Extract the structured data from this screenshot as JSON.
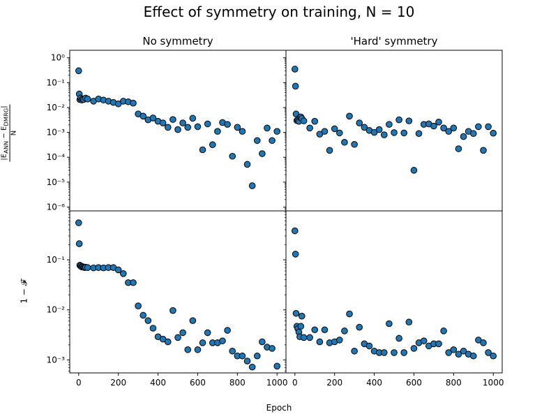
{
  "figure_title": "Effect of symmetry on training, N = 10",
  "xlabel": "Epoch",
  "colors": {
    "marker_fill": "#1f77b4",
    "marker_edge": "#000000",
    "frame": "#000000"
  },
  "x_ticks": [
    0,
    200,
    400,
    600,
    800,
    1000
  ],
  "column_titles": [
    "No symmetry",
    "'Hard' symmetry"
  ],
  "row_ylabels": [
    {
      "num": "|E",
      "num_sub1": "ANN",
      "num_mid": " − E",
      "num_sub2": "DMRG",
      "num_end": "|",
      "den": "N"
    },
    {
      "text": "1 − 𝓕"
    }
  ],
  "chart_data": [
    {
      "type": "scatter",
      "title": "No symmetry",
      "row": 0,
      "col": 0,
      "xlim": [
        -45,
        1045
      ],
      "ylim": [
        7e-07,
        2
      ],
      "yscale": "log",
      "ytick_values": [
        1,
        0.1,
        0.01,
        0.001,
        0.0001,
        1e-05,
        1e-06
      ],
      "ytick_labels": [
        "10^0",
        "10^-1",
        "10^-2",
        "10^-3",
        "10^-4",
        "10^-5",
        "10^-6"
      ],
      "points": [
        [
          0,
          0.3
        ],
        [
          3,
          0.035
        ],
        [
          6,
          0.021
        ],
        [
          10,
          0.024
        ],
        [
          15,
          0.02
        ],
        [
          20,
          0.022
        ],
        [
          25,
          0.021
        ],
        [
          35,
          0.024
        ],
        [
          45,
          0.022
        ],
        [
          75,
          0.018
        ],
        [
          100,
          0.022
        ],
        [
          125,
          0.02
        ],
        [
          150,
          0.018
        ],
        [
          175,
          0.016
        ],
        [
          200,
          0.014
        ],
        [
          225,
          0.018
        ],
        [
          250,
          0.017
        ],
        [
          275,
          0.015
        ],
        [
          300,
          0.0055
        ],
        [
          325,
          0.0045
        ],
        [
          350,
          0.0032
        ],
        [
          375,
          0.0038
        ],
        [
          400,
          0.0028
        ],
        [
          425,
          0.0024
        ],
        [
          450,
          0.0016
        ],
        [
          475,
          0.0033
        ],
        [
          500,
          0.0013
        ],
        [
          525,
          0.0024
        ],
        [
          550,
          0.0016
        ],
        [
          575,
          0.0037
        ],
        [
          600,
          0.0017
        ],
        [
          625,
          0.0002
        ],
        [
          650,
          0.0022
        ],
        [
          675,
          0.00032
        ],
        [
          700,
          0.0011
        ],
        [
          725,
          0.0025
        ],
        [
          750,
          0.0021
        ],
        [
          775,
          0.00011
        ],
        [
          800,
          0.0016
        ],
        [
          825,
          0.0011
        ],
        [
          850,
          5.2e-05
        ],
        [
          875,
          7.2e-06
        ],
        [
          900,
          0.00047
        ],
        [
          925,
          0.00014
        ],
        [
          950,
          0.0015
        ],
        [
          975,
          0.00047
        ],
        [
          1000,
          0.0011
        ]
      ]
    },
    {
      "type": "scatter",
      "title": "'Hard' symmetry",
      "row": 0,
      "col": 1,
      "xlim": [
        -45,
        1045
      ],
      "ylim": [
        7e-07,
        2
      ],
      "yscale": "log",
      "ytick_values": [
        1,
        0.1,
        0.01,
        0.001,
        0.0001,
        1e-05,
        1e-06
      ],
      "points": [
        [
          0,
          0.35
        ],
        [
          3,
          0.072
        ],
        [
          6,
          0.0055
        ],
        [
          10,
          0.003
        ],
        [
          15,
          0.0032
        ],
        [
          20,
          0.0028
        ],
        [
          25,
          0.004
        ],
        [
          30,
          0.0042
        ],
        [
          35,
          0.0036
        ],
        [
          45,
          0.0029
        ],
        [
          75,
          0.0015
        ],
        [
          100,
          0.0028
        ],
        [
          125,
          0.00085
        ],
        [
          150,
          0.0011
        ],
        [
          175,
          0.00019
        ],
        [
          200,
          0.0014
        ],
        [
          225,
          0.00095
        ],
        [
          250,
          0.0004
        ],
        [
          275,
          0.0045
        ],
        [
          300,
          0.00033
        ],
        [
          325,
          0.0024
        ],
        [
          350,
          0.0016
        ],
        [
          375,
          0.0012
        ],
        [
          400,
          0.001
        ],
        [
          425,
          0.0013
        ],
        [
          450,
          0.0008
        ],
        [
          475,
          0.0021
        ],
        [
          500,
          0.00098
        ],
        [
          525,
          0.0032
        ],
        [
          550,
          0.00095
        ],
        [
          575,
          0.0029
        ],
        [
          600,
          3e-05
        ],
        [
          625,
          0.0009
        ],
        [
          650,
          0.0021
        ],
        [
          675,
          0.0022
        ],
        [
          700,
          0.0018
        ],
        [
          725,
          0.0026
        ],
        [
          750,
          0.0015
        ],
        [
          775,
          0.0011
        ],
        [
          800,
          0.0015
        ],
        [
          825,
          0.00022
        ],
        [
          850,
          0.00068
        ],
        [
          875,
          0.0011
        ],
        [
          900,
          0.0009
        ],
        [
          925,
          0.0017
        ],
        [
          950,
          0.00019
        ],
        [
          975,
          0.0017
        ],
        [
          1000,
          0.00093
        ]
      ]
    },
    {
      "type": "scatter",
      "row": 1,
      "col": 0,
      "xlim": [
        -45,
        1045
      ],
      "ylim": [
        0.00055,
        0.95
      ],
      "yscale": "log",
      "ytick_values": [
        0.1,
        0.01,
        0.001
      ],
      "ytick_labels": [
        "10^-1",
        "10^-2",
        "10^-3"
      ],
      "points": [
        [
          0,
          0.55
        ],
        [
          3,
          0.21
        ],
        [
          6,
          0.078
        ],
        [
          10,
          0.075
        ],
        [
          15,
          0.072
        ],
        [
          20,
          0.073
        ],
        [
          25,
          0.071
        ],
        [
          30,
          0.07
        ],
        [
          35,
          0.071
        ],
        [
          45,
          0.07
        ],
        [
          75,
          0.069
        ],
        [
          100,
          0.07
        ],
        [
          125,
          0.069
        ],
        [
          150,
          0.07
        ],
        [
          175,
          0.07
        ],
        [
          200,
          0.063
        ],
        [
          225,
          0.053
        ],
        [
          250,
          0.035
        ],
        [
          275,
          0.035
        ],
        [
          300,
          0.012
        ],
        [
          325,
          0.0078
        ],
        [
          350,
          0.0061
        ],
        [
          375,
          0.0043
        ],
        [
          400,
          0.0029
        ],
        [
          425,
          0.0026
        ],
        [
          450,
          0.0023
        ],
        [
          475,
          0.0097
        ],
        [
          500,
          0.0028
        ],
        [
          525,
          0.0035
        ],
        [
          550,
          0.0016
        ],
        [
          575,
          0.0061
        ],
        [
          600,
          0.0016
        ],
        [
          625,
          0.0022
        ],
        [
          650,
          0.0035
        ],
        [
          675,
          0.0022
        ],
        [
          700,
          0.0022
        ],
        [
          725,
          0.0024
        ],
        [
          750,
          0.0039
        ],
        [
          775,
          0.0015
        ],
        [
          800,
          0.0012
        ],
        [
          825,
          0.0012
        ],
        [
          850,
          0.00095
        ],
        [
          875,
          0.00072
        ],
        [
          900,
          0.0012
        ],
        [
          925,
          0.0023
        ],
        [
          950,
          0.0018
        ],
        [
          975,
          0.0017
        ],
        [
          1000,
          0.00075
        ]
      ]
    },
    {
      "type": "scatter",
      "row": 1,
      "col": 1,
      "xlim": [
        -45,
        1045
      ],
      "ylim": [
        0.00055,
        0.95
      ],
      "yscale": "log",
      "ytick_values": [
        0.1,
        0.01,
        0.001
      ],
      "points": [
        [
          0,
          0.38
        ],
        [
          3,
          0.13
        ],
        [
          6,
          0.0085
        ],
        [
          10,
          0.0047
        ],
        [
          15,
          0.0042
        ],
        [
          20,
          0.0036
        ],
        [
          25,
          0.0029
        ],
        [
          30,
          0.0047
        ],
        [
          35,
          0.0075
        ],
        [
          45,
          0.0028
        ],
        [
          75,
          0.0028
        ],
        [
          100,
          0.004
        ],
        [
          125,
          0.0023
        ],
        [
          150,
          0.004
        ],
        [
          175,
          0.0022
        ],
        [
          200,
          0.0023
        ],
        [
          225,
          0.0025
        ],
        [
          250,
          0.0038
        ],
        [
          275,
          0.0083
        ],
        [
          300,
          0.0015
        ],
        [
          325,
          0.0045
        ],
        [
          350,
          0.0021
        ],
        [
          375,
          0.0019
        ],
        [
          400,
          0.0015
        ],
        [
          425,
          0.0014
        ],
        [
          450,
          0.0014
        ],
        [
          475,
          0.0053
        ],
        [
          500,
          0.0014
        ],
        [
          525,
          0.0027
        ],
        [
          550,
          0.0014
        ],
        [
          575,
          0.0057
        ],
        [
          600,
          0.0017
        ],
        [
          625,
          0.0022
        ],
        [
          650,
          0.0024
        ],
        [
          675,
          0.0019
        ],
        [
          700,
          0.0021
        ],
        [
          725,
          0.0021
        ],
        [
          750,
          0.0038
        ],
        [
          775,
          0.0014
        ],
        [
          800,
          0.0016
        ],
        [
          825,
          0.0013
        ],
        [
          850,
          0.0015
        ],
        [
          875,
          0.0013
        ],
        [
          900,
          0.0012
        ],
        [
          925,
          0.0025
        ],
        [
          950,
          0.0022
        ],
        [
          975,
          0.0014
        ],
        [
          1000,
          0.0012
        ]
      ]
    }
  ]
}
